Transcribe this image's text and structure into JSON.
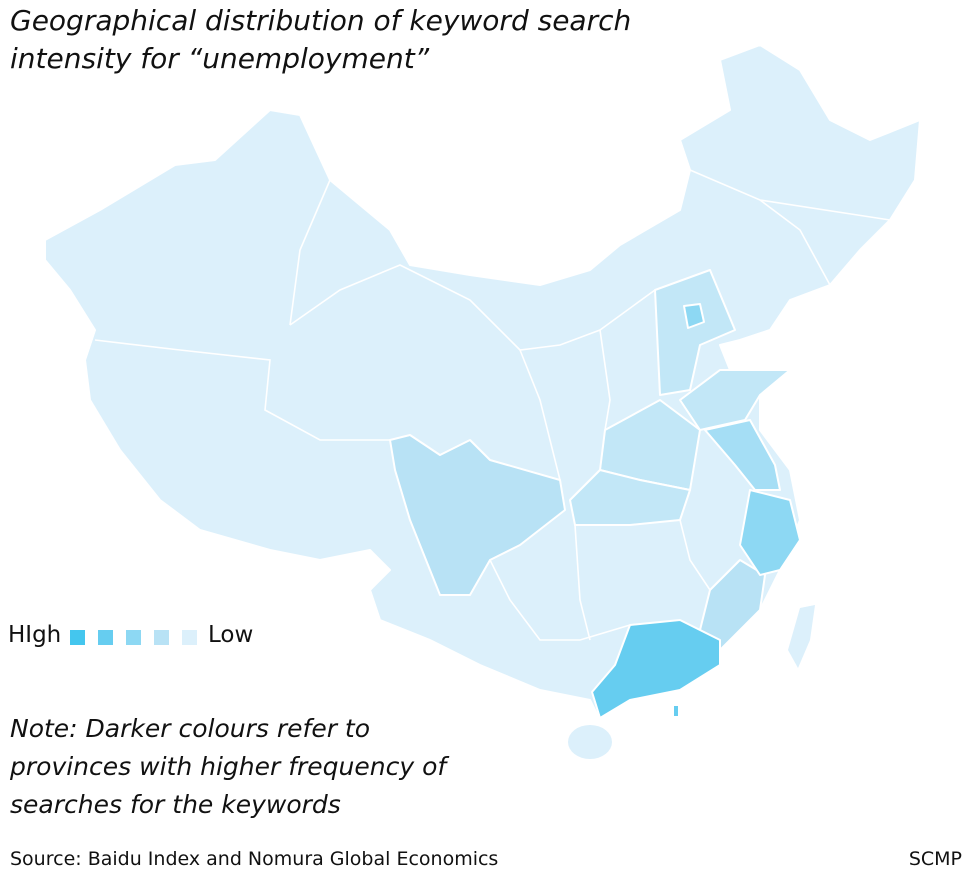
{
  "title": [
    "Geographical distribution of keyword search",
    "intensity for “unemployment”"
  ],
  "legend": {
    "high": "HIgh",
    "low": "Low"
  },
  "note": [
    "Note: Darker colours refer to",
    "provinces with higher frequency of",
    "searches for the keywords"
  ],
  "source": "Source: Baidu Index and Nomura Global Economics",
  "credit": "SCMP"
}
